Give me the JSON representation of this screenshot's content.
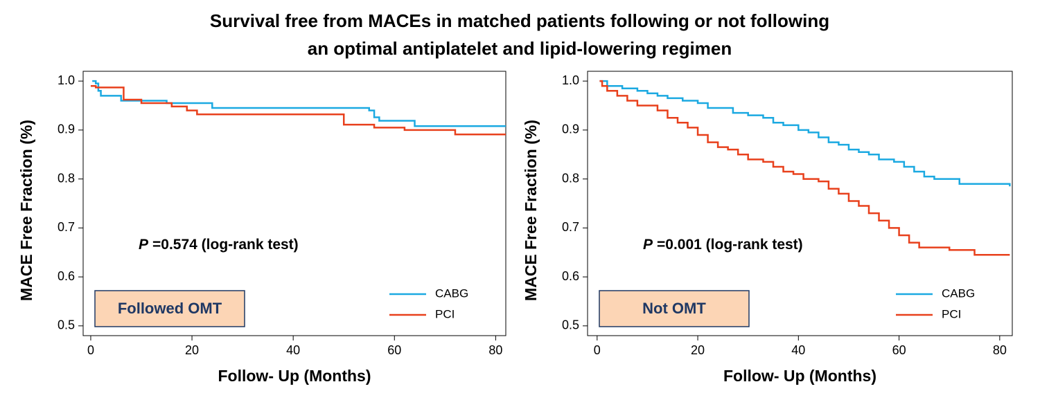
{
  "title": [
    "Survival free from MACEs in matched patients following or not following",
    "an optimal antiplatelet and lipid-lowering regimen"
  ],
  "chart_data": [
    {
      "type": "line",
      "step": true,
      "xlabel": "Follow- Up (Months)",
      "ylabel": "MACE Free Fraction (%)",
      "annotation_symbol": "P",
      "annotation": "=0.574 (log-rank test)",
      "group_label": "Followed OMT",
      "legend": "lower right",
      "xlim": [
        -1.5,
        82
      ],
      "xticks": [
        0,
        20,
        40,
        60,
        80
      ],
      "ylim": [
        0.48,
        1.02
      ],
      "yticks": [
        {
          "value": 1,
          "label": "1.0"
        },
        0.9,
        0.8,
        0.7,
        0.6,
        0.5
      ],
      "series": [
        {
          "name": "CABG",
          "color": "#1ba9e1",
          "x": [
            0.3,
            1,
            1.5,
            2,
            6,
            15,
            24,
            55,
            56,
            57,
            64,
            82
          ],
          "values": [
            1.0,
            0.995,
            0.98,
            0.97,
            0.96,
            0.955,
            0.945,
            0.94,
            0.926,
            0.919,
            0.908,
            0.908
          ]
        },
        {
          "name": "PCI",
          "color": "#e8401c",
          "x": [
            0,
            1,
            6.5,
            10,
            16,
            19,
            21,
            50,
            56,
            62,
            72,
            82
          ],
          "values": [
            0.99,
            0.987,
            0.962,
            0.955,
            0.948,
            0.94,
            0.932,
            0.911,
            0.905,
            0.9,
            0.891,
            0.891
          ]
        }
      ]
    },
    {
      "type": "line",
      "step": true,
      "xlabel": "Follow- Up (Months)",
      "ylabel": "MACE Free Fraction (%)",
      "annotation_symbol": "P",
      "annotation": "=0.001 (log-rank test)",
      "group_label": "Not OMT",
      "legend": "lower right",
      "xlim": [
        -1.9,
        82.5
      ],
      "xticks": [
        0,
        20,
        40,
        60,
        80
      ],
      "ylim": [
        0.48,
        1.02
      ],
      "yticks": [
        {
          "value": 1,
          "label": "1.0"
        },
        0.9,
        0.8,
        0.7,
        0.6,
        0.5
      ],
      "series": [
        {
          "name": "CABG",
          "color": "#1ba9e1",
          "x": [
            0.5,
            2,
            5,
            8,
            10,
            12,
            14,
            17,
            20,
            22,
            27,
            30,
            33,
            35,
            37,
            40,
            42,
            44,
            46,
            48,
            50,
            52,
            54,
            56,
            59,
            61,
            63,
            65,
            67,
            72,
            82
          ],
          "values": [
            1.0,
            0.99,
            0.985,
            0.98,
            0.975,
            0.97,
            0.965,
            0.96,
            0.955,
            0.945,
            0.935,
            0.93,
            0.925,
            0.915,
            0.91,
            0.9,
            0.895,
            0.885,
            0.875,
            0.87,
            0.86,
            0.855,
            0.85,
            0.84,
            0.835,
            0.825,
            0.815,
            0.805,
            0.8,
            0.79,
            0.785
          ]
        },
        {
          "name": "PCI",
          "color": "#e8401c",
          "x": [
            0.5,
            1,
            2,
            4,
            6,
            8,
            12,
            14,
            16,
            18,
            20,
            22,
            24,
            26,
            28,
            30,
            33,
            35,
            37,
            39,
            41,
            44,
            46,
            48,
            50,
            52,
            54,
            56,
            58,
            60,
            62,
            64,
            70,
            75,
            82
          ],
          "values": [
            1.0,
            0.99,
            0.98,
            0.97,
            0.96,
            0.95,
            0.94,
            0.925,
            0.915,
            0.905,
            0.89,
            0.875,
            0.865,
            0.86,
            0.85,
            0.84,
            0.835,
            0.825,
            0.815,
            0.81,
            0.8,
            0.795,
            0.78,
            0.77,
            0.755,
            0.745,
            0.73,
            0.715,
            0.7,
            0.685,
            0.67,
            0.66,
            0.655,
            0.645,
            0.645
          ]
        }
      ]
    }
  ]
}
